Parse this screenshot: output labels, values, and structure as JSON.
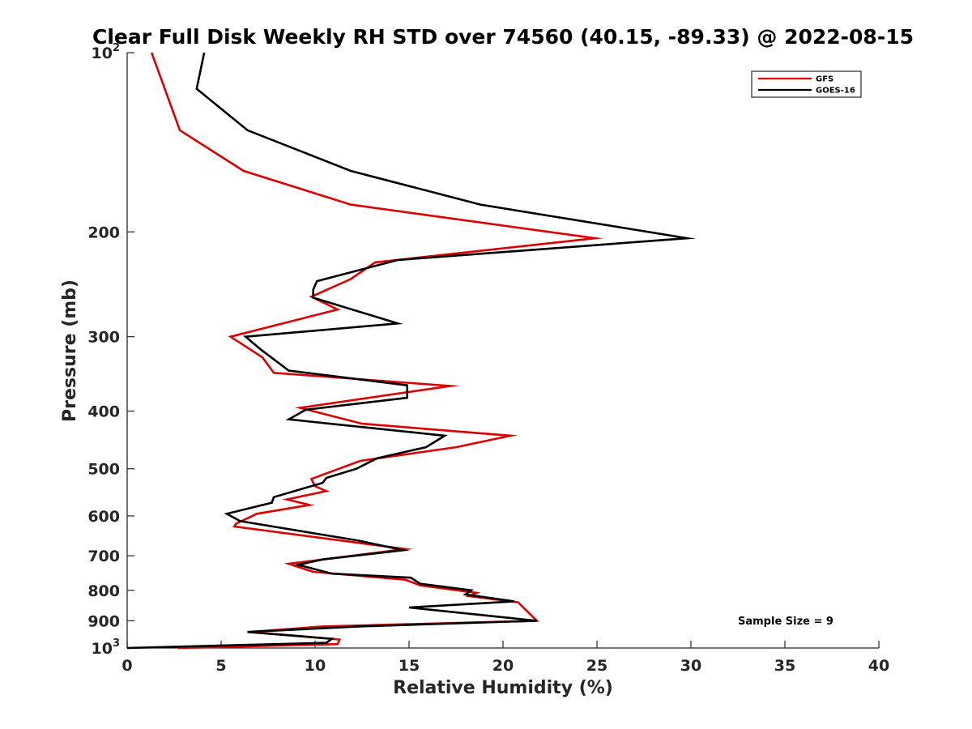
{
  "chart_data": {
    "type": "line",
    "orientation": "profile",
    "title": "Clear Full Disk Weekly RH STD over 74560 (40.15, -89.33) @ 2022-08-15",
    "xlabel": "Relative Humidity (%)",
    "ylabel": "Pressure (mb)",
    "xlim": [
      0,
      40
    ],
    "ylim": [
      100,
      1000
    ],
    "y_scale": "log",
    "y_reversed": true,
    "grid": false,
    "x_ticks": [
      "0",
      "5",
      "10",
      "15",
      "20",
      "25",
      "30",
      "35",
      "40"
    ],
    "y_ticks": [
      {
        "value": 100,
        "base": "10",
        "exp": "2"
      },
      {
        "value": 200,
        "label": "200"
      },
      {
        "value": 300,
        "label": "300"
      },
      {
        "value": 400,
        "label": "400"
      },
      {
        "value": 500,
        "label": "500"
      },
      {
        "value": 600,
        "label": "600"
      },
      {
        "value": 700,
        "label": "700"
      },
      {
        "value": 800,
        "label": "800"
      },
      {
        "value": 900,
        "label": "900"
      },
      {
        "value": 1000,
        "base": "10",
        "exp": "3"
      }
    ],
    "legend": {
      "placement": "top-right"
    },
    "annotation": "Sample Size = 9",
    "series": [
      {
        "name": "GFS",
        "color": "#dd0000",
        "x": [
          1.3,
          2.0,
          2.8,
          6.2,
          11.9,
          24.9,
          13.2,
          11.9,
          9.8,
          11.2,
          5.5,
          7.2,
          7.8,
          17.2,
          9.2,
          12.5,
          20.4,
          17.5,
          12.4,
          9.8,
          10.0,
          10.6,
          8.5,
          9.7,
          6.9,
          5.8,
          5.7,
          14.8,
          8.6,
          9.9,
          14.8,
          15.6,
          18.6,
          18.2,
          20.8,
          21.8,
          10.4,
          6.5,
          11.3,
          11.2,
          2.7
        ],
        "y": [
          100,
          115,
          135,
          158,
          180,
          205,
          225,
          240,
          257,
          270,
          300,
          325,
          345,
          363,
          395,
          420,
          440,
          460,
          485,
          520,
          535,
          545,
          563,
          575,
          595,
          618,
          625,
          682,
          722,
          745,
          768,
          785,
          808,
          818,
          838,
          900,
          920,
          940,
          968,
          985,
          1000
        ]
      },
      {
        "name": "GOES-16",
        "color": "#000000",
        "x": [
          4.1,
          3.7,
          6.4,
          11.9,
          18.8,
          29.8,
          14.4,
          10.1,
          9.9,
          9.9,
          14.4,
          6.3,
          7.1,
          8.6,
          14.9,
          14.9,
          9.5,
          8.6,
          16.9,
          15.9,
          13.3,
          12.2,
          10.6,
          10.4,
          7.8,
          7.7,
          5.3,
          6.0,
          12.3,
          14.7,
          10.4,
          9.1,
          10.9,
          15.1,
          15.6,
          18.3,
          18.0,
          20.6,
          15.0,
          21.8,
          12.3,
          6.4,
          10.9,
          10.6,
          0.0
        ],
        "y": [
          100,
          115,
          135,
          158,
          180,
          205,
          223,
          242,
          250,
          258,
          285,
          300,
          315,
          342,
          362,
          380,
          398,
          413,
          440,
          460,
          480,
          500,
          518,
          528,
          558,
          570,
          595,
          612,
          660,
          685,
          710,
          725,
          750,
          762,
          780,
          800,
          813,
          835,
          855,
          900,
          920,
          940,
          965,
          980,
          1000
        ]
      }
    ]
  }
}
